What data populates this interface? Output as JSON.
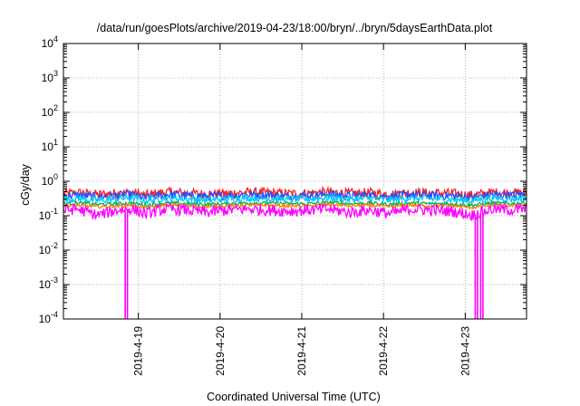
{
  "chart_data": {
    "type": "line",
    "title": "/data/run/goesPlots/archive/2019-04-23/18:00/bryn/../bryn/5daysEarthData.plot",
    "xlabel": "Coordinated Universal Time (UTC)",
    "ylabel": "cGy/day",
    "x_range": [
      "2019-04-18T02:00",
      "2019-04-23T18:00"
    ],
    "y_scale": "log",
    "ylim": [
      0.0001,
      10000
    ],
    "grid": true,
    "legend": "none",
    "y_ticks": [
      {
        "base": "10",
        "exp": "-4"
      },
      {
        "base": "10",
        "exp": "-3"
      },
      {
        "base": "10",
        "exp": "-2"
      },
      {
        "base": "10",
        "exp": "-1"
      },
      {
        "base": "10",
        "exp": "0"
      },
      {
        "base": "10",
        "exp": "1"
      },
      {
        "base": "10",
        "exp": "2"
      },
      {
        "base": "10",
        "exp": "3"
      },
      {
        "base": "10",
        "exp": "4"
      }
    ],
    "x_ticks": [
      "2019-4-19",
      "2019-4-20",
      "2019-4-21",
      "2019-4-22",
      "2019-4-23"
    ],
    "x_days": [
      "2019-04-18",
      "2019-04-18",
      "2019-04-18",
      "2019-04-18",
      "2019-04-18",
      "2019-04-19",
      "2019-04-19",
      "2019-04-19",
      "2019-04-19",
      "2019-04-20",
      "2019-04-20",
      "2019-04-20",
      "2019-04-20",
      "2019-04-21",
      "2019-04-21",
      "2019-04-21",
      "2019-04-21",
      "2019-04-22",
      "2019-04-22",
      "2019-04-22",
      "2019-04-22",
      "2019-04-23",
      "2019-04-23",
      "2019-04-23",
      "2019-04-23"
    ],
    "x": [
      "2019-04-18T02:00",
      "2019-04-18T06:00",
      "2019-04-18T12:00",
      "2019-04-18T18:00",
      "2019-04-18T22:00",
      "2019-04-19T02:00",
      "2019-04-19T08:00",
      "2019-04-19T14:00",
      "2019-04-19T20:00",
      "2019-04-20T02:00",
      "2019-04-20T08:00",
      "2019-04-20T14:00",
      "2019-04-20T20:00",
      "2019-04-21T02:00",
      "2019-04-21T08:00",
      "2019-04-21T14:00",
      "2019-04-21T20:00",
      "2019-04-22T02:00",
      "2019-04-22T08:00",
      "2019-04-22T14:00",
      "2019-04-22T20:00",
      "2019-04-23T02:00",
      "2019-04-23T08:00",
      "2019-04-23T14:00",
      "2019-04-23T18:00"
    ],
    "x_hours": [
      2,
      6,
      12,
      18,
      22,
      2,
      8,
      14,
      20,
      2,
      8,
      14,
      20,
      2,
      8,
      14,
      20,
      2,
      8,
      14,
      20,
      2,
      8,
      14,
      18
    ],
    "series": [
      {
        "color": "#ff2020",
        "values": [
          0.42,
          0.45,
          0.4,
          0.44,
          0.46,
          0.38,
          0.47,
          0.44,
          0.41,
          0.43,
          0.46,
          0.45,
          0.42,
          0.44,
          0.47,
          0.43,
          0.45,
          0.41,
          0.46,
          0.44,
          0.43,
          0.38,
          0.46,
          0.44,
          0.47
        ]
      },
      {
        "color": "#2050ff",
        "values": [
          0.36,
          0.39,
          0.34,
          0.38,
          0.4,
          0.32,
          0.4,
          0.38,
          0.35,
          0.37,
          0.4,
          0.39,
          0.36,
          0.38,
          0.41,
          0.37,
          0.39,
          0.35,
          0.4,
          0.38,
          0.37,
          0.33,
          0.4,
          0.38,
          0.41
        ]
      },
      {
        "color": "#00c8ff",
        "values": [
          0.29,
          0.31,
          0.27,
          0.3,
          0.32,
          0.26,
          0.32,
          0.3,
          0.28,
          0.3,
          0.32,
          0.31,
          0.29,
          0.3,
          0.33,
          0.29,
          0.31,
          0.28,
          0.32,
          0.3,
          0.29,
          0.27,
          0.32,
          0.3,
          0.33
        ]
      },
      {
        "color": "#00b050",
        "values": [
          0.22,
          0.23,
          0.21,
          0.22,
          0.23,
          0.2,
          0.23,
          0.22,
          0.21,
          0.22,
          0.23,
          0.23,
          0.22,
          0.22,
          0.24,
          0.22,
          0.23,
          0.21,
          0.23,
          0.22,
          0.22,
          0.2,
          0.23,
          0.22,
          0.24
        ]
      },
      {
        "color": "#ff8000",
        "values": [
          0.19,
          0.2,
          0.18,
          0.19,
          0.2,
          0.17,
          0.2,
          0.19,
          0.18,
          0.19,
          0.2,
          0.2,
          0.19,
          0.19,
          0.21,
          0.19,
          0.2,
          0.18,
          0.2,
          0.19,
          0.19,
          0.17,
          0.2,
          0.19,
          0.21
        ]
      },
      {
        "color": "#ff00ff",
        "values": [
          0.14,
          0.15,
          0.1,
          0.14,
          0.15,
          0.11,
          0.15,
          0.14,
          0.12,
          0.14,
          0.15,
          0.14,
          0.13,
          0.14,
          0.15,
          0.12,
          0.14,
          0.11,
          0.15,
          0.14,
          0.13,
          0.1,
          0.15,
          0.14,
          0.15
        ]
      }
    ],
    "dropouts": [
      {
        "color": "#ff00ff",
        "x": "2019-04-18T20:24",
        "value": 0.0001
      },
      {
        "color": "#ff00ff",
        "x": "2019-04-23T03:12",
        "value": 0.0001
      },
      {
        "color": "#ff00ff",
        "x": "2019-04-23T04:48",
        "value": 0.0001
      }
    ]
  }
}
